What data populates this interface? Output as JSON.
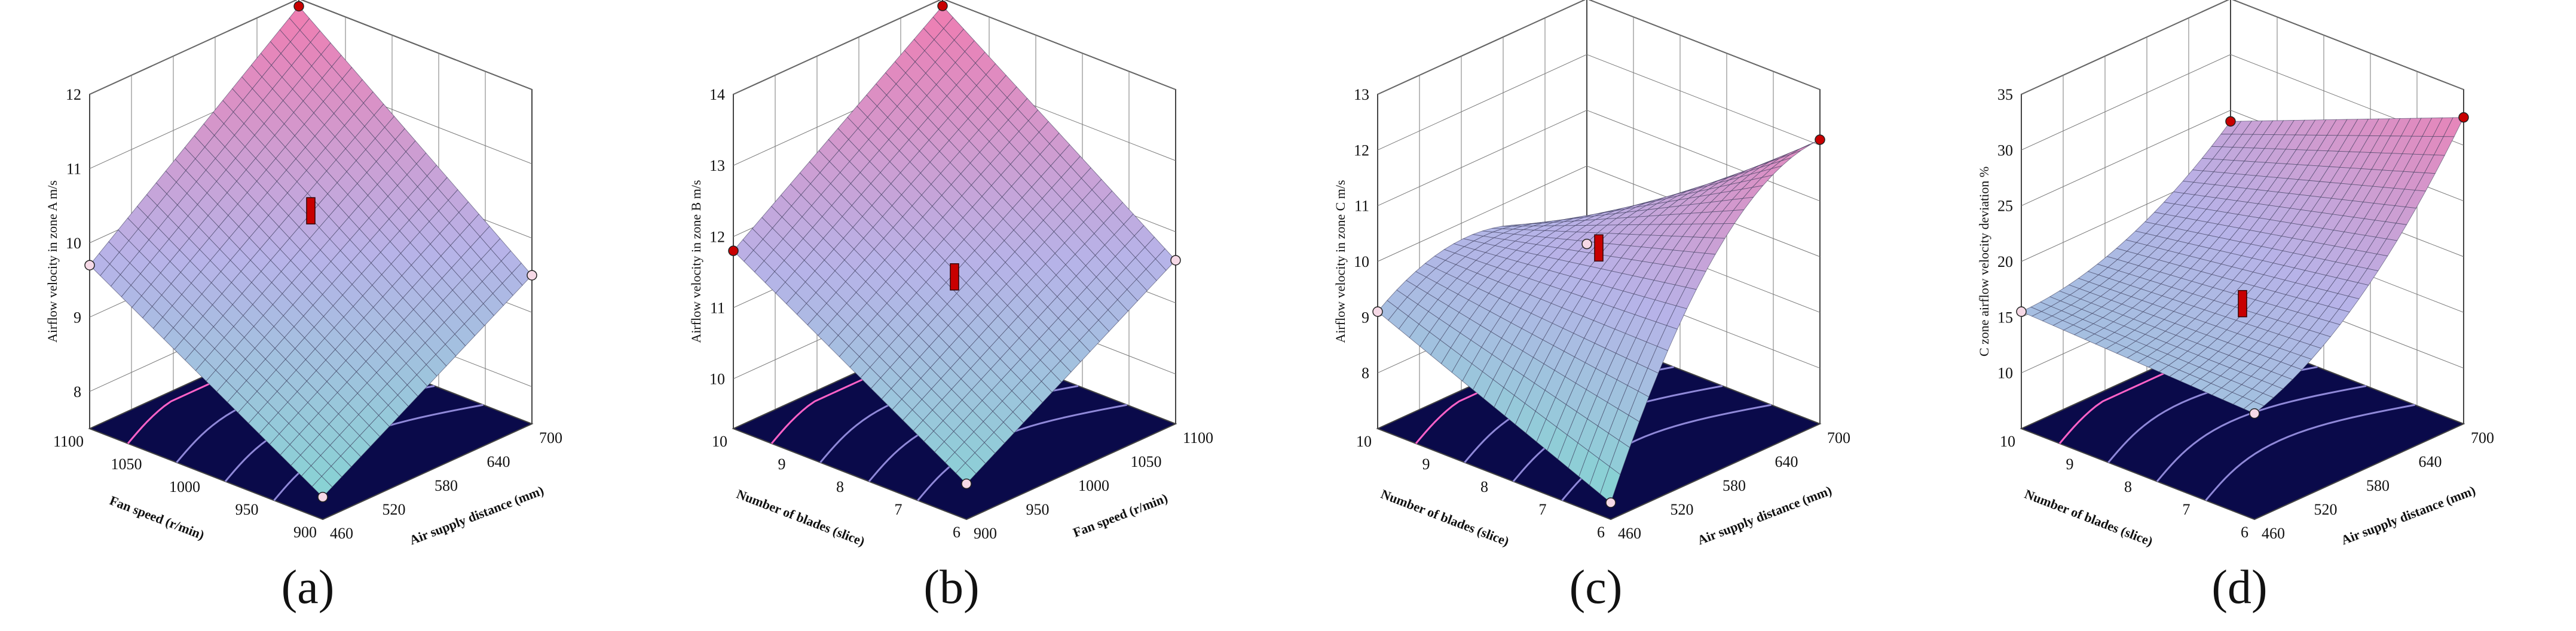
{
  "chart_data": [
    {
      "type": "surface3d",
      "panel_label": "(a)",
      "zlabel": "Airflow velocity in zone A m/s",
      "zticks": [
        "8",
        "9",
        "10",
        "11",
        "12"
      ],
      "zlim": [
        7.5,
        12
      ],
      "left_axis": {
        "label": "Fan speed (r/min)",
        "ticks": [
          "900",
          "950",
          "1000",
          "1050",
          "1100"
        ]
      },
      "right_axis": {
        "label": "Air supply distance (mm)",
        "ticks": [
          "460",
          "520",
          "580",
          "640",
          "700"
        ]
      },
      "surface_values": [
        [
          7.8,
          9.5
        ],
        [
          9.7,
          11.9
        ]
      ],
      "surface_note": "rows: left axis low→high; cols: right axis low→high",
      "curvature": 0.0,
      "design_points": [
        {
          "label": "center",
          "value": 10.4
        }
      ]
    },
    {
      "type": "surface3d",
      "panel_label": "(b)",
      "zlabel": "Airflow velocity in zone B m/s",
      "zticks": [
        "10",
        "11",
        "12",
        "13",
        "14"
      ],
      "zlim": [
        9.3,
        14
      ],
      "left_axis": {
        "label": "Number of blades (slice)",
        "ticks": [
          "6",
          "7",
          "8",
          "9",
          "10"
        ]
      },
      "right_axis": {
        "label": "Fan speed (r/min)",
        "ticks": [
          "900",
          "950",
          "1000",
          "1050",
          "1100"
        ]
      },
      "surface_values": [
        [
          9.8,
          11.6
        ],
        [
          11.8,
          13.9
        ]
      ],
      "surface_note": "rows: left axis low→high; cols: right axis low→high",
      "curvature": 0.0,
      "design_points": [
        {
          "label": "center",
          "value": 11.4
        }
      ]
    },
    {
      "type": "surface3d",
      "panel_label": "(c)",
      "zlabel": "Airflow velocity in zone C m/s",
      "zticks": [
        "8",
        "9",
        "10",
        "11",
        "12",
        "13"
      ],
      "zlim": [
        7,
        13
      ],
      "left_axis": {
        "label": "Number of blades (slice)",
        "ticks": [
          "6",
          "7",
          "8",
          "9",
          "10"
        ]
      },
      "right_axis": {
        "label": "Air supply distance (mm)",
        "ticks": [
          "460",
          "520",
          "580",
          "640",
          "700"
        ]
      },
      "surface_values": [
        [
          7.3,
          12.1
        ],
        [
          9.1,
          8.6
        ]
      ],
      "surface_note": "rows: left axis low→high; cols: right axis low→high",
      "curvature": 1.2,
      "design_points": [
        {
          "label": "center",
          "value": 10.2
        }
      ]
    },
    {
      "type": "surface3d",
      "panel_label": "(d)",
      "zlabel": "C zone airflow velocity deviation %",
      "zticks": [
        "10",
        "15",
        "20",
        "25",
        "30",
        "35"
      ],
      "zlim": [
        5,
        35
      ],
      "left_axis": {
        "label": "Number of blades (slice)",
        "ticks": [
          "6",
          "7",
          "8",
          "9",
          "10"
        ]
      },
      "right_axis": {
        "label": "Air supply distance (mm)",
        "ticks": [
          "460",
          "520",
          "580",
          "640",
          "700"
        ]
      },
      "surface_values": [
        [
          14.5,
          32.5
        ],
        [
          15.5,
          24.0
        ]
      ],
      "surface_note": "rows: left axis low→high; cols: right axis low→high",
      "curvature": -3.0,
      "design_points": [
        {
          "label": "center",
          "value": 16.0
        }
      ]
    }
  ],
  "colors": {
    "surface_low": "#7fd8d0",
    "surface_mid": "#b7b3e8",
    "surface_high": "#f27aae",
    "floor": "#0a0a4a",
    "contour": "#8f88d8",
    "contour_hot": "#ff62c8",
    "mesh": "#3a3a5a",
    "point": "#c80000",
    "frame": "#444444"
  }
}
